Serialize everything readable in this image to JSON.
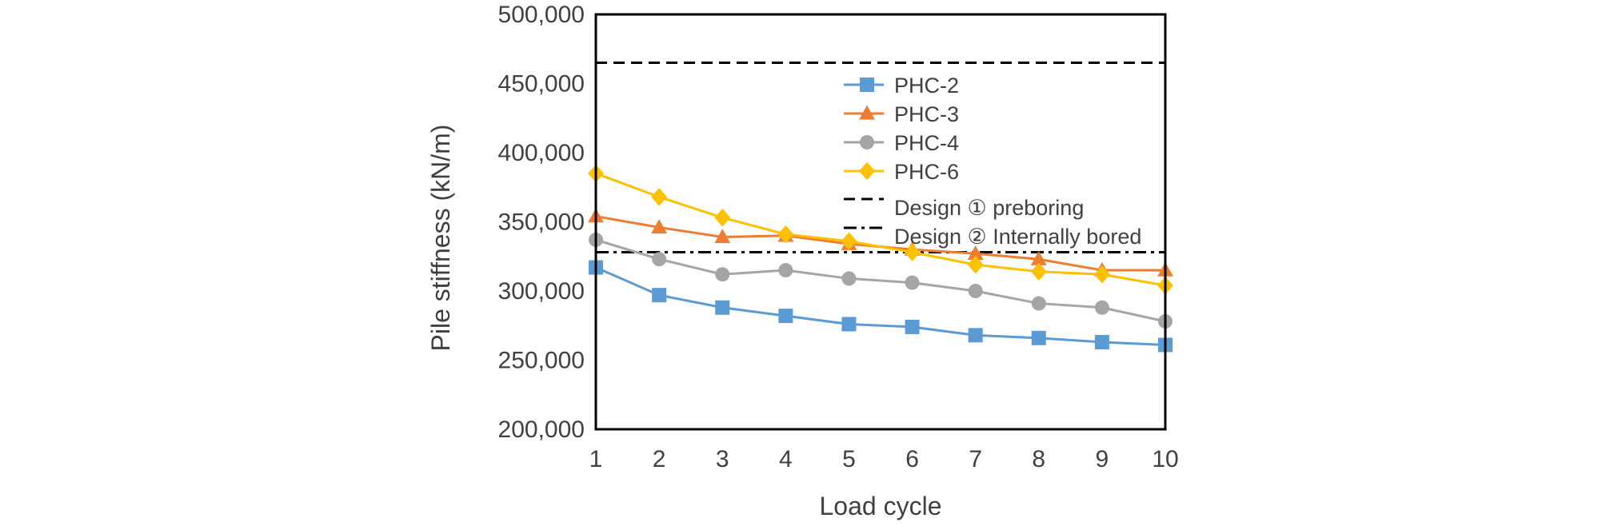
{
  "chart_data": {
    "type": "line",
    "xlabel": "Load cycle",
    "ylabel": "Pile stiffness (kN/m)",
    "x": [
      1,
      2,
      3,
      4,
      5,
      6,
      7,
      8,
      9,
      10
    ],
    "x_tick_labels": [
      "1",
      "2",
      "3",
      "4",
      "5",
      "6",
      "7",
      "8",
      "9",
      "10"
    ],
    "ylim": [
      200000,
      500000
    ],
    "y_ticks": [
      200000,
      250000,
      300000,
      350000,
      400000,
      450000,
      500000
    ],
    "y_tick_labels": [
      "200,000",
      "250,000",
      "300,000",
      "350,000",
      "400,000",
      "450,000",
      "500,000"
    ],
    "grid": false,
    "legend_position": "top-center",
    "series": [
      {
        "name": "PHC-2",
        "color": "#5B9BD5",
        "marker": "square",
        "values": [
          317000,
          297000,
          288000,
          282000,
          276000,
          274000,
          268000,
          266000,
          263000,
          261000
        ]
      },
      {
        "name": "PHC-3",
        "color": "#ED7D31",
        "marker": "triangle",
        "values": [
          354000,
          346000,
          339000,
          340000,
          334000,
          330000,
          327000,
          323000,
          315000,
          315000
        ]
      },
      {
        "name": "PHC-4",
        "color": "#A5A5A5",
        "marker": "circle",
        "values": [
          337000,
          323000,
          312000,
          315000,
          309000,
          306000,
          300000,
          291000,
          288000,
          278000
        ]
      },
      {
        "name": "PHC-6",
        "color": "#FFC000",
        "marker": "diamond",
        "values": [
          385000,
          368000,
          353000,
          341000,
          336000,
          328000,
          319000,
          314000,
          312000,
          304000
        ]
      }
    ],
    "reference_lines": [
      {
        "name": "Design ① preboring",
        "value": 465000,
        "color": "#000000",
        "style": "dashed"
      },
      {
        "name": "Design ② Internally bored",
        "value": 328000,
        "color": "#000000",
        "style": "dash-dot"
      }
    ]
  }
}
